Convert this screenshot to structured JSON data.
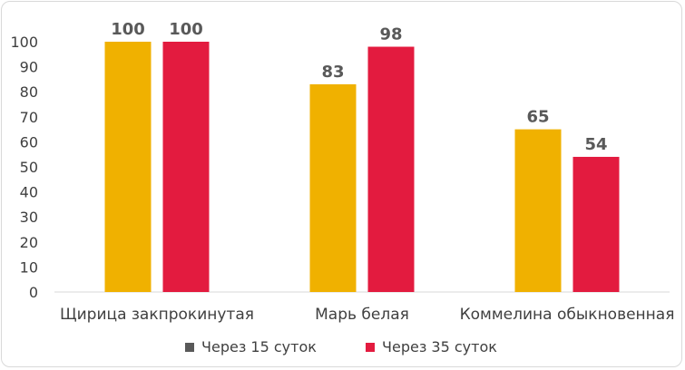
{
  "chart_data": {
    "type": "bar",
    "categories": [
      "Щирица закпрокинутая",
      "Марь белая",
      "Коммелина обыкновенная"
    ],
    "series": [
      {
        "name": "Через 15 суток",
        "values": [
          100,
          83,
          65
        ],
        "color": "#f0b100",
        "legend_color": "#595959"
      },
      {
        "name": "Через 35 суток",
        "values": [
          100,
          98,
          54
        ],
        "color": "#e31b3f",
        "legend_color": "#e31b3f"
      }
    ],
    "ylim": [
      0,
      100
    ],
    "yticks": [
      0,
      10,
      20,
      30,
      40,
      50,
      60,
      70,
      80,
      90,
      100
    ],
    "grid": false,
    "legend_position": "bottom",
    "data_labels": true
  }
}
